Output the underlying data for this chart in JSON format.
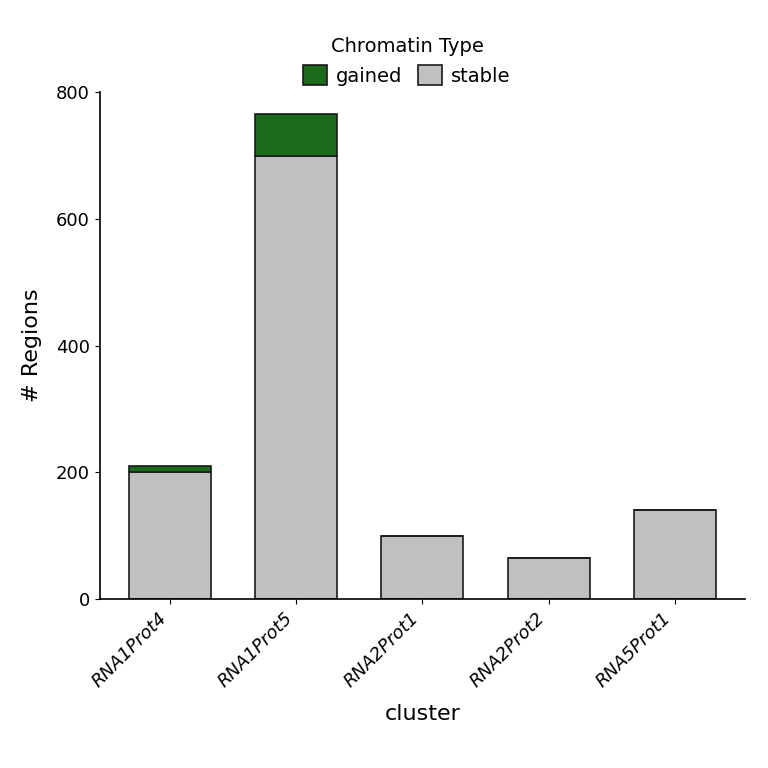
{
  "categories": [
    "RNA1Prot4",
    "RNA1Prot5",
    "RNA2Prot1",
    "RNA2Prot2",
    "RNA5Prot1"
  ],
  "stable": [
    200,
    700,
    100,
    65,
    140
  ],
  "gained": [
    10,
    65,
    0,
    0,
    0
  ],
  "color_stable": "#C0C0C0",
  "color_gained": "#1A6B1A",
  "edgecolor": "#1a1a1a",
  "title": "Chromatin Type",
  "ylabel": "# Regions",
  "xlabel": "cluster",
  "ylim": [
    0,
    800
  ],
  "yticks": [
    0,
    200,
    400,
    600,
    800
  ],
  "legend_title": "Chromatin Type",
  "background_color": "#ffffff",
  "bar_width": 0.65
}
